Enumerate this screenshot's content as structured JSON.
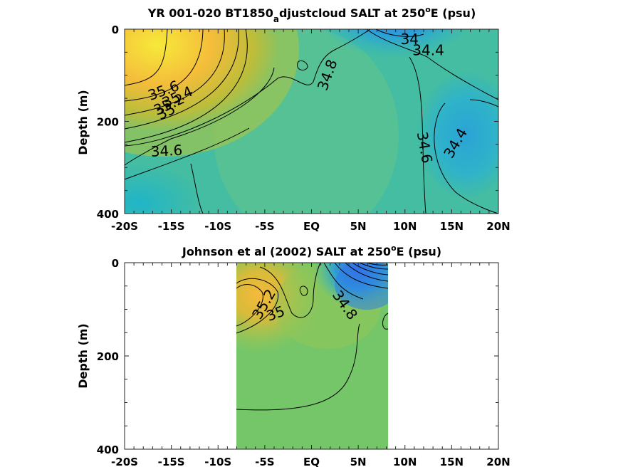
{
  "chart_data": [
    {
      "type": "heatmap",
      "subtype": "filled-contour",
      "title_parts": [
        "YR 001-020 BT1850",
        "a",
        "djustcloud SALT at 250",
        "o",
        "E (psu)"
      ],
      "ylabel": "Depth (m)",
      "x_tick_labels": [
        "-20S",
        "-15S",
        "-10S",
        "-5S",
        "EQ",
        "5N",
        "10N",
        "15N",
        "20N"
      ],
      "x_ticks_deg": [
        -20,
        -15,
        -10,
        -5,
        0,
        5,
        10,
        15,
        20
      ],
      "y_tick_labels": [
        "0",
        "200",
        "400"
      ],
      "y_ticks_m": [
        0,
        200,
        400
      ],
      "xlim": [
        -20,
        20
      ],
      "ylim": [
        0,
        400
      ],
      "y_reversed": true,
      "contour_labels": [
        {
          "text": "35.6",
          "lat": -15.8,
          "depth": 135,
          "angle": -20
        },
        {
          "text": "35.4",
          "lat": -14.3,
          "depth": 149,
          "angle": -25
        },
        {
          "text": "35.2",
          "lat": -15.2,
          "depth": 165,
          "angle": -25
        },
        {
          "text": "35",
          "lat": -15.5,
          "depth": 181,
          "angle": -25
        },
        {
          "text": "34.6",
          "lat": -15.5,
          "depth": 266,
          "angle": -3
        },
        {
          "text": "34.8",
          "lat": 1.8,
          "depth": 100,
          "angle": -70
        },
        {
          "text": "34",
          "lat": 10.5,
          "depth": 24,
          "angle": 0
        },
        {
          "text": "34.4",
          "lat": 12.5,
          "depth": 48,
          "angle": 0
        },
        {
          "text": "34.6",
          "lat": 12.0,
          "depth": 257,
          "angle": 80
        },
        {
          "text": "34.4",
          "lat": 15.5,
          "depth": 248,
          "angle": -60
        }
      ]
    },
    {
      "type": "heatmap",
      "subtype": "filled-contour",
      "title_parts": [
        "Johnson et al (2002) SALT at 250",
        "o",
        "E (psu)"
      ],
      "ylabel": "Depth (m)",
      "x_tick_labels": [
        "-20S",
        "-15S",
        "-10S",
        "-5S",
        "EQ",
        "5N",
        "10N",
        "15N",
        "20N"
      ],
      "x_ticks_deg": [
        -20,
        -15,
        -10,
        -5,
        0,
        5,
        10,
        15,
        20
      ],
      "y_tick_labels": [
        "0",
        "200",
        "400"
      ],
      "y_ticks_m": [
        0,
        200,
        400
      ],
      "xlim": [
        -20,
        20
      ],
      "ylim": [
        0,
        400
      ],
      "y_reversed": true,
      "data_lat_range": [
        -8,
        8.2
      ],
      "contour_labels": [
        {
          "text": "35.2",
          "lat": -5.0,
          "depth": 90,
          "angle": -60
        },
        {
          "text": "35",
          "lat": -3.8,
          "depth": 111,
          "angle": -20
        },
        {
          "text": "34.8",
          "lat": 3.5,
          "depth": 92,
          "angle": 55
        }
      ]
    }
  ]
}
